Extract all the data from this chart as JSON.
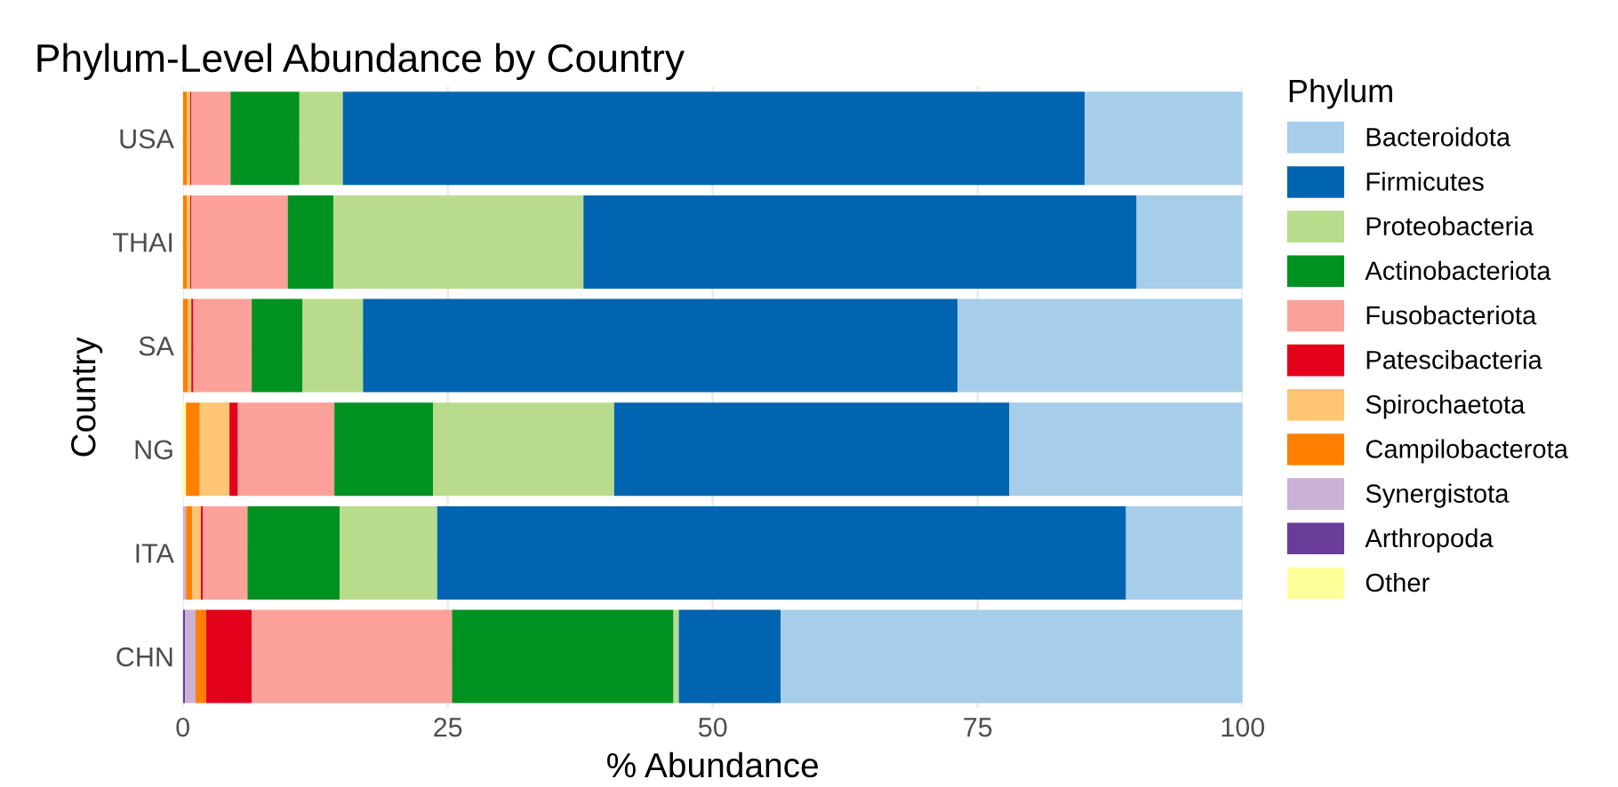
{
  "chart_data": {
    "type": "bar",
    "orientation": "horizontal",
    "stacked": true,
    "title": "Phylum-Level Abundance by Country",
    "xlabel": "% Abundance",
    "ylabel": "Country",
    "legend_title": "Phylum",
    "legend": "right",
    "grid": true,
    "categories": [
      "USA",
      "THAI",
      "SA",
      "NG",
      "ITA",
      "CHN"
    ],
    "xlim": [
      0,
      100
    ],
    "xticks": [
      0,
      25,
      50,
      75,
      100
    ],
    "series": [
      {
        "name": "Other",
        "color": "#ffff99",
        "values": [
          0,
          0,
          0,
          0.3,
          0,
          0
        ]
      },
      {
        "name": "Arthropoda",
        "color": "#6a3d9a",
        "values": [
          0,
          0,
          0,
          0,
          0,
          0.2
        ]
      },
      {
        "name": "Synergistota",
        "color": "#cab2d6",
        "values": [
          0,
          0,
          0,
          0,
          0.3,
          1.0
        ]
      },
      {
        "name": "Campilobacterota",
        "color": "#ff7f00",
        "values": [
          0.4,
          0.4,
          0.5,
          1.3,
          0.6,
          1.0
        ]
      },
      {
        "name": "Spirochaetota",
        "color": "#fdc574",
        "values": [
          0.3,
          0.3,
          0.3,
          2.8,
          0.8,
          0
        ]
      },
      {
        "name": "Patescibacteria",
        "color": "#e3001a",
        "values": [
          0.1,
          0.1,
          0.2,
          0.8,
          0.2,
          4.3
        ]
      },
      {
        "name": "Fusobacteriota",
        "color": "#fca19a",
        "values": [
          3.7,
          9.1,
          5.5,
          9.1,
          4.2,
          18.9
        ]
      },
      {
        "name": "Actinobacteriota",
        "color": "#009220",
        "values": [
          6.5,
          4.3,
          4.8,
          9.3,
          8.7,
          20.9
        ]
      },
      {
        "name": "Proteobacteria",
        "color": "#b8dc8c",
        "values": [
          4.1,
          23.6,
          5.7,
          17.1,
          9.2,
          0.5
        ]
      },
      {
        "name": "Firmicutes",
        "color": "#0064b0",
        "values": [
          70.0,
          52.2,
          56.1,
          37.3,
          65.0,
          9.6
        ]
      },
      {
        "name": "Bacteroidota",
        "color": "#a6cde9",
        "values": [
          14.9,
          10.0,
          26.9,
          22.0,
          11.0,
          43.6
        ]
      }
    ]
  }
}
